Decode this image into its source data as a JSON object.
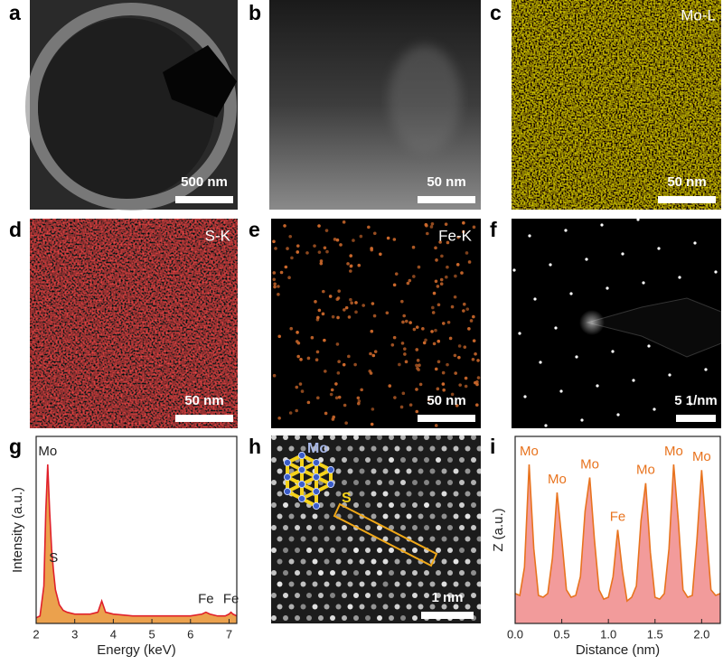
{
  "panels": {
    "a": {
      "label": "a",
      "scale_bar": "500 nm"
    },
    "b": {
      "label": "b",
      "scale_bar": "50 nm"
    },
    "c": {
      "label": "c",
      "element": "Mo-L",
      "scale_bar": "50 nm"
    },
    "d": {
      "label": "d",
      "element": "S-K",
      "scale_bar": "50 nm"
    },
    "e": {
      "label": "e",
      "element": "Fe-K",
      "scale_bar": "50 nm"
    },
    "f": {
      "label": "f",
      "scale_bar": "5 1/nm"
    },
    "g": {
      "label": "g"
    },
    "h": {
      "label": "h",
      "scale_bar": "1 nm",
      "atom_labels": [
        "Mo",
        "S"
      ]
    },
    "i": {
      "label": "i"
    }
  },
  "chart_data": [
    {
      "type": "area",
      "x_label": "Energy (keV)",
      "y_label": "Intensity (a.u.)",
      "x": [
        2.0,
        2.1,
        2.2,
        2.25,
        2.3,
        2.35,
        2.4,
        2.45,
        2.5,
        2.6,
        2.7,
        2.8,
        3.0,
        3.2,
        3.4,
        3.6,
        3.65,
        3.7,
        3.75,
        3.8,
        4.0,
        4.5,
        5.0,
        5.5,
        6.0,
        6.3,
        6.4,
        6.5,
        6.7,
        6.9,
        7.0,
        7.05,
        7.1,
        7.2
      ],
      "values": [
        3,
        4,
        20,
        60,
        85,
        60,
        40,
        28,
        18,
        10,
        7,
        6,
        5,
        5,
        5,
        6,
        9,
        12,
        9,
        6,
        5,
        4,
        4,
        4,
        4,
        5,
        6,
        5,
        4,
        4,
        5,
        6,
        5,
        4
      ],
      "color": "#e0202a",
      "fill": "#e8912e",
      "xlim": [
        2.0,
        7.2
      ],
      "xticks": [
        2,
        3,
        4,
        5,
        6,
        7
      ],
      "ylim": [
        0,
        100
      ],
      "annotations": [
        {
          "text": "Mo",
          "x": 2.3
        },
        {
          "text": "S",
          "x": 2.45
        },
        {
          "text": "Fe",
          "x": 6.4
        },
        {
          "text": "Fe",
          "x": 7.05
        }
      ]
    },
    {
      "type": "area",
      "x_label": "Distance (nm)",
      "y_label": "Z (a.u.)",
      "x": [
        0.0,
        0.05,
        0.1,
        0.15,
        0.2,
        0.25,
        0.3,
        0.35,
        0.4,
        0.45,
        0.5,
        0.55,
        0.6,
        0.65,
        0.7,
        0.75,
        0.8,
        0.85,
        0.9,
        0.95,
        1.0,
        1.05,
        1.1,
        1.15,
        1.2,
        1.25,
        1.3,
        1.35,
        1.4,
        1.45,
        1.5,
        1.55,
        1.6,
        1.65,
        1.7,
        1.75,
        1.8,
        1.85,
        1.9,
        1.95,
        2.0,
        2.05,
        2.1,
        2.15,
        2.2
      ],
      "values": [
        16,
        15,
        30,
        85,
        40,
        15,
        14,
        16,
        35,
        70,
        45,
        18,
        14,
        15,
        25,
        60,
        78,
        45,
        18,
        13,
        14,
        25,
        50,
        28,
        12,
        14,
        20,
        55,
        75,
        38,
        14,
        13,
        16,
        40,
        85,
        55,
        18,
        14,
        15,
        45,
        82,
        50,
        18,
        15,
        16
      ],
      "color": "#e8731e",
      "fill": "#f08a8a",
      "xlim": [
        0,
        2.2
      ],
      "xticks": [
        {
          "value": 0,
          "label": "0.0"
        },
        0.5,
        {
          "value": 1,
          "label": "1.0"
        },
        1.5,
        {
          "value": 2,
          "label": "2.0"
        }
      ],
      "ylim": [
        0,
        100
      ],
      "annotations": [
        {
          "text": "Mo",
          "x": 0.15
        },
        {
          "text": "Mo",
          "x": 0.45
        },
        {
          "text": "Mo",
          "x": 0.8
        },
        {
          "text": "Fe",
          "x": 1.1
        },
        {
          "text": "Mo",
          "x": 1.4
        },
        {
          "text": "Mo",
          "x": 1.7
        },
        {
          "text": "Mo",
          "x": 2.0
        }
      ]
    }
  ]
}
